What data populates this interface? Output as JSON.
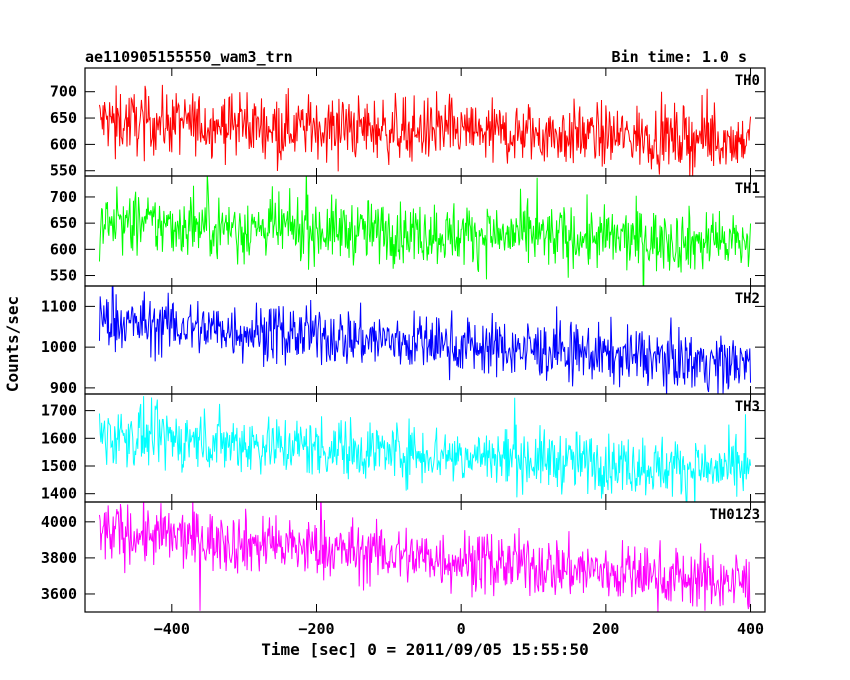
{
  "header": {
    "title": "ae110905155550_wam3_trn",
    "bin_time": "Bin time: 1.0 s"
  },
  "chart_data": {
    "type": "line",
    "xlabel": "Time [sec] 0 = 2011/09/05 15:55:50",
    "ylabel": "Counts/sec",
    "xlim": [
      -520,
      420
    ],
    "x_ticks": [
      -400,
      -200,
      0,
      200,
      400
    ],
    "x_tick_labels": [
      "−400",
      "−200",
      "0",
      "200",
      "400"
    ],
    "x_range": [
      -500,
      400
    ],
    "bin_time": 1.0,
    "panels": [
      {
        "name": "TH0",
        "color": "#ff0000",
        "ylim": [
          540,
          745
        ],
        "yticks": [
          550,
          600,
          650,
          700
        ],
        "start": 645,
        "end": 608,
        "noise": 30
      },
      {
        "name": "TH1",
        "color": "#00ff00",
        "ylim": [
          530,
          740
        ],
        "yticks": [
          550,
          600,
          650,
          700
        ],
        "start": 650,
        "end": 612,
        "noise": 30
      },
      {
        "name": "TH2",
        "color": "#0000ff",
        "ylim": [
          885,
          1150
        ],
        "yticks": [
          900,
          1000,
          1100
        ],
        "start": 1063,
        "end": 958,
        "noise": 36
      },
      {
        "name": "TH3",
        "color": "#00ffff",
        "ylim": [
          1370,
          1760
        ],
        "yticks": [
          1400,
          1500,
          1600,
          1700
        ],
        "start": 1612,
        "end": 1480,
        "noise": 55
      },
      {
        "name": "TH0123",
        "color": "#ff00ff",
        "ylim": [
          3500,
          4110
        ],
        "yticks": [
          3600,
          3800,
          4000
        ],
        "start": 3945,
        "end": 3660,
        "noise": 85
      }
    ],
    "grid": false,
    "legend": "none"
  }
}
